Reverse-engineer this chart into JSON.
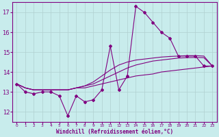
{
  "xlabel": "Windchill (Refroidissement éolien,°C)",
  "bg_color": "#c8ecec",
  "line_color": "#800080",
  "grid_color": "#b0d0d0",
  "x_values": [
    0,
    1,
    2,
    3,
    4,
    5,
    6,
    7,
    8,
    9,
    10,
    11,
    12,
    13,
    14,
    15,
    16,
    17,
    18,
    19,
    20,
    21,
    22,
    23
  ],
  "y_main": [
    13.4,
    13.0,
    12.9,
    13.0,
    13.0,
    12.8,
    11.8,
    12.8,
    12.5,
    12.6,
    13.1,
    15.3,
    13.1,
    13.8,
    17.3,
    17.0,
    16.5,
    16.0,
    15.7,
    14.8,
    14.8,
    14.8,
    14.3,
    14.3
  ],
  "y_line1": [
    13.4,
    13.2,
    13.1,
    13.1,
    13.1,
    13.1,
    13.1,
    13.2,
    13.2,
    13.3,
    13.4,
    13.5,
    13.6,
    13.7,
    13.8,
    13.85,
    13.9,
    14.0,
    14.05,
    14.1,
    14.15,
    14.2,
    14.25,
    14.3
  ],
  "y_line2": [
    13.4,
    13.2,
    13.1,
    13.1,
    13.1,
    13.1,
    13.1,
    13.2,
    13.3,
    13.4,
    13.6,
    13.8,
    14.0,
    14.2,
    14.35,
    14.45,
    14.55,
    14.6,
    14.65,
    14.7,
    14.72,
    14.73,
    14.72,
    14.3
  ],
  "y_line3": [
    13.4,
    13.2,
    13.1,
    13.1,
    13.1,
    13.1,
    13.1,
    13.2,
    13.3,
    13.5,
    13.8,
    14.1,
    14.35,
    14.5,
    14.6,
    14.65,
    14.7,
    14.75,
    14.78,
    14.8,
    14.82,
    14.82,
    14.8,
    14.3
  ],
  "ylim": [
    11.5,
    17.5
  ],
  "yticks": [
    12,
    13,
    14,
    15,
    16,
    17
  ],
  "xlim": [
    -0.5,
    23.5
  ]
}
